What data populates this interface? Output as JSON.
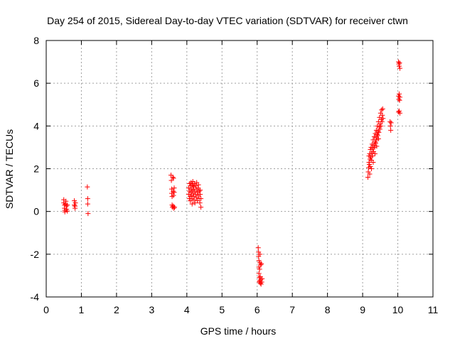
{
  "chart_data": {
    "type": "scatter",
    "title": "Day 254 of 2015, Sidereal Day-to-day VTEC variation (SDTVAR) for receiver ctwn",
    "xlabel": "GPS time / hours",
    "ylabel": "SDTVAR / TECUs",
    "xlim": [
      0,
      11
    ],
    "ylim": [
      -4,
      8
    ],
    "xticks": [
      0,
      1,
      2,
      3,
      4,
      5,
      6,
      7,
      8,
      9,
      10,
      11
    ],
    "yticks": [
      -4,
      -2,
      0,
      2,
      4,
      6,
      8
    ],
    "grid": true,
    "marker": "+",
    "color": "#ff0000",
    "series": [
      {
        "name": "SDTVAR",
        "points": [
          [
            0.5,
            0.55
          ],
          [
            0.5,
            0.4
          ],
          [
            0.52,
            0.3
          ],
          [
            0.52,
            0.15
          ],
          [
            0.53,
            0.05
          ],
          [
            0.53,
            -0.02
          ],
          [
            0.55,
            0.35
          ],
          [
            0.56,
            0.48
          ],
          [
            0.57,
            0.25
          ],
          [
            0.58,
            0.1
          ],
          [
            0.6,
            0.02
          ],
          [
            0.6,
            0.3
          ],
          [
            0.8,
            0.5
          ],
          [
            0.8,
            0.3
          ],
          [
            0.82,
            0.25
          ],
          [
            0.82,
            0.15
          ],
          [
            0.83,
            0.4
          ],
          [
            1.17,
            1.15
          ],
          [
            1.18,
            0.6
          ],
          [
            1.18,
            0.35
          ],
          [
            1.19,
            -0.1
          ],
          [
            3.55,
            1.7
          ],
          [
            3.56,
            1.45
          ],
          [
            3.57,
            1.05
          ],
          [
            3.57,
            0.85
          ],
          [
            3.58,
            0.7
          ],
          [
            3.58,
            0.3
          ],
          [
            3.59,
            0.2
          ],
          [
            3.6,
            1.6
          ],
          [
            3.61,
            0.95
          ],
          [
            3.61,
            0.25
          ],
          [
            3.62,
            1.55
          ],
          [
            3.62,
            0.75
          ],
          [
            3.63,
            0.15
          ],
          [
            3.64,
            0.9
          ],
          [
            3.64,
            1.1
          ],
          [
            3.65,
            0.2
          ],
          [
            4.05,
            0.8
          ],
          [
            4.05,
            1.1
          ],
          [
            4.07,
            0.6
          ],
          [
            4.08,
            1.3
          ],
          [
            4.08,
            0.95
          ],
          [
            4.1,
            1.2
          ],
          [
            4.1,
            0.7
          ],
          [
            4.1,
            0.5
          ],
          [
            4.12,
            1.35
          ],
          [
            4.12,
            0.9
          ],
          [
            4.13,
            1.05
          ],
          [
            4.14,
            0.75
          ],
          [
            4.15,
            1.25
          ],
          [
            4.15,
            0.6
          ],
          [
            4.17,
            1.4
          ],
          [
            4.17,
            1.0
          ],
          [
            4.18,
            0.85
          ],
          [
            4.2,
            1.15
          ],
          [
            4.2,
            0.7
          ],
          [
            4.2,
            0.55
          ],
          [
            4.22,
            1.3
          ],
          [
            4.22,
            0.95
          ],
          [
            4.23,
            0.4
          ],
          [
            4.25,
            1.2
          ],
          [
            4.25,
            0.8
          ],
          [
            4.27,
            1.05
          ],
          [
            4.27,
            0.65
          ],
          [
            4.28,
            1.35
          ],
          [
            4.3,
            0.9
          ],
          [
            4.3,
            0.5
          ],
          [
            4.32,
            1.1
          ],
          [
            4.32,
            0.75
          ],
          [
            4.33,
            1.25
          ],
          [
            4.35,
            0.6
          ],
          [
            4.35,
            0.95
          ],
          [
            4.37,
            0.4
          ],
          [
            4.38,
            0.8
          ],
          [
            4.38,
            1.0
          ],
          [
            4.4,
            0.2
          ],
          [
            4.4,
            0.6
          ],
          [
            4.15,
            0.35
          ],
          [
            4.18,
            1.2
          ],
          [
            6.03,
            -1.7
          ],
          [
            6.04,
            -1.9
          ],
          [
            6.04,
            -2.1
          ],
          [
            6.05,
            -2.3
          ],
          [
            6.05,
            -2.6
          ],
          [
            6.05,
            -2.9
          ],
          [
            6.06,
            -3.1
          ],
          [
            6.06,
            -3.3
          ],
          [
            6.07,
            -3.25
          ],
          [
            6.07,
            -2.7
          ],
          [
            6.08,
            -2.4
          ],
          [
            6.08,
            -2.0
          ],
          [
            6.09,
            -3.35
          ],
          [
            6.09,
            -3.05
          ],
          [
            6.1,
            -2.5
          ],
          [
            6.1,
            -3.2
          ],
          [
            6.11,
            -3.4
          ],
          [
            6.12,
            -2.45
          ],
          [
            6.13,
            -3.3
          ],
          [
            6.14,
            -3.15
          ],
          [
            9.15,
            1.6
          ],
          [
            9.16,
            1.85
          ],
          [
            9.17,
            2.05
          ],
          [
            9.18,
            2.3
          ],
          [
            9.18,
            2.6
          ],
          [
            9.19,
            2.2
          ],
          [
            9.2,
            2.7
          ],
          [
            9.21,
            2.45
          ],
          [
            9.22,
            2.9
          ],
          [
            9.22,
            2.1
          ],
          [
            9.23,
            2.55
          ],
          [
            9.24,
            3.0
          ],
          [
            9.25,
            2.4
          ],
          [
            9.26,
            2.75
          ],
          [
            9.27,
            3.15
          ],
          [
            9.28,
            2.6
          ],
          [
            9.29,
            2.95
          ],
          [
            9.3,
            3.35
          ],
          [
            9.31,
            2.8
          ],
          [
            9.32,
            3.1
          ],
          [
            9.33,
            3.5
          ],
          [
            9.34,
            3.0
          ],
          [
            9.35,
            3.25
          ],
          [
            9.36,
            3.65
          ],
          [
            9.37,
            3.2
          ],
          [
            9.38,
            3.45
          ],
          [
            9.39,
            3.8
          ],
          [
            9.4,
            3.35
          ],
          [
            9.41,
            3.6
          ],
          [
            9.42,
            4.0
          ],
          [
            9.43,
            3.55
          ],
          [
            9.44,
            3.75
          ],
          [
            9.45,
            4.2
          ],
          [
            9.46,
            3.7
          ],
          [
            9.47,
            3.95
          ],
          [
            9.48,
            4.4
          ],
          [
            9.49,
            3.85
          ],
          [
            9.5,
            4.1
          ],
          [
            9.51,
            4.6
          ],
          [
            9.52,
            4.0
          ],
          [
            9.53,
            4.3
          ],
          [
            9.54,
            4.75
          ],
          [
            9.55,
            4.2
          ],
          [
            9.56,
            4.5
          ],
          [
            9.57,
            4.8
          ],
          [
            9.58,
            4.35
          ],
          [
            9.2,
            1.75
          ],
          [
            9.25,
            2.0
          ],
          [
            9.3,
            2.3
          ],
          [
            9.35,
            2.7
          ],
          [
            9.4,
            3.05
          ],
          [
            9.45,
            3.4
          ],
          [
            9.78,
            4.2
          ],
          [
            9.79,
            4.0
          ],
          [
            9.8,
            3.8
          ],
          [
            9.81,
            4.15
          ],
          [
            10.02,
            7.0
          ],
          [
            10.03,
            6.9
          ],
          [
            10.04,
            6.8
          ],
          [
            10.05,
            6.95
          ],
          [
            10.06,
            6.7
          ],
          [
            10.02,
            5.4
          ],
          [
            10.03,
            5.25
          ],
          [
            10.04,
            5.5
          ],
          [
            10.05,
            5.2
          ],
          [
            10.06,
            5.35
          ],
          [
            10.02,
            4.65
          ],
          [
            10.04,
            4.7
          ],
          [
            10.06,
            4.6
          ]
        ]
      }
    ]
  }
}
